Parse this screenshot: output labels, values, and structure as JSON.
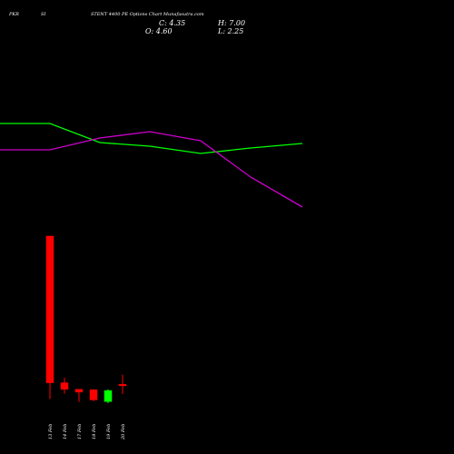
{
  "header": {
    "left_a": "PKR",
    "left_b": "SI",
    "title": "STENT 4400 PE Options Chart Munafasutra.com"
  },
  "ohlc": {
    "close": "C: 4.35",
    "high": "H: 7.00",
    "open": "O: 4.60",
    "low": "L: 2.25"
  },
  "colors": {
    "background": "#000000",
    "up": "#00ff00",
    "down": "#ff0000",
    "green_line": "#00ff00",
    "magenta_line": "#cc00cc",
    "text": "#ffffff"
  },
  "chart_data": {
    "type": "candlestick",
    "categories": [
      "13 Feb",
      "14 Feb",
      "17 Feb",
      "18 Feb",
      "19 Feb",
      "20 Feb"
    ],
    "candles": [
      {
        "date": "13 Feb",
        "open": 41.0,
        "high": 41.0,
        "low": 1.0,
        "close": 5.0
      },
      {
        "date": "14 Feb",
        "open": 5.0,
        "high": 6.2,
        "low": 2.3,
        "close": 3.4
      },
      {
        "date": "17 Feb",
        "open": 3.4,
        "high": 3.4,
        "low": 0.3,
        "close": 2.7
      },
      {
        "date": "18 Feb",
        "open": 3.3,
        "high": 3.4,
        "low": 0.5,
        "close": 0.8
      },
      {
        "date": "19 Feb",
        "open": 0.4,
        "high": 3.4,
        "low": 0.0,
        "close": 3.1
      },
      {
        "date": "20 Feb",
        "open": 4.6,
        "high": 7.0,
        "low": 2.25,
        "close": 4.35
      }
    ],
    "lines": [
      {
        "color": "#00ff00",
        "points": [
          [
            0,
            364
          ],
          [
            55,
            364
          ],
          [
            110,
            343
          ],
          [
            165,
            339
          ],
          [
            221,
            331
          ],
          [
            276,
            337
          ],
          [
            333,
            342
          ]
        ]
      },
      {
        "color": "#cc00cc",
        "points": [
          [
            0,
            335
          ],
          [
            55,
            335
          ],
          [
            110,
            348
          ],
          [
            165,
            355
          ],
          [
            221,
            345
          ],
          [
            276,
            305
          ],
          [
            333,
            272
          ]
        ]
      }
    ],
    "ylim": [
      0,
      500
    ]
  }
}
